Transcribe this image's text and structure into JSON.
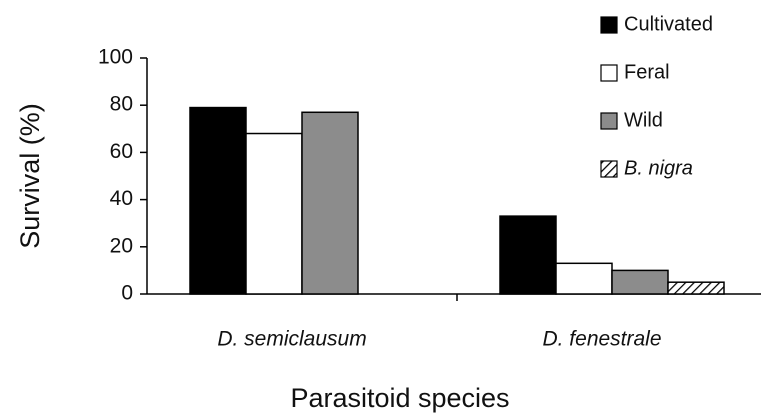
{
  "chart_data": {
    "type": "bar",
    "y_label": "Survival (%)",
    "x_label": "Parasitoid species",
    "categories": [
      "D. semiclausum",
      "D. fenestrale"
    ],
    "series": [
      {
        "name": "Cultivated",
        "color": "#000000",
        "values": [
          79,
          33
        ]
      },
      {
        "name": "Feral",
        "color": "#ffffff",
        "values": [
          68,
          13
        ]
      },
      {
        "name": "Wild",
        "color": "#8c8c8c",
        "values": [
          77,
          10
        ]
      },
      {
        "name": "B. nigra",
        "color": "#ffffff",
        "pattern": "hatch",
        "values": [
          null,
          5
        ]
      }
    ],
    "ylim": [
      0,
      100
    ],
    "yticks": [
      0,
      20,
      40,
      60,
      80,
      100
    ],
    "grid": false,
    "legend": "top-right"
  }
}
